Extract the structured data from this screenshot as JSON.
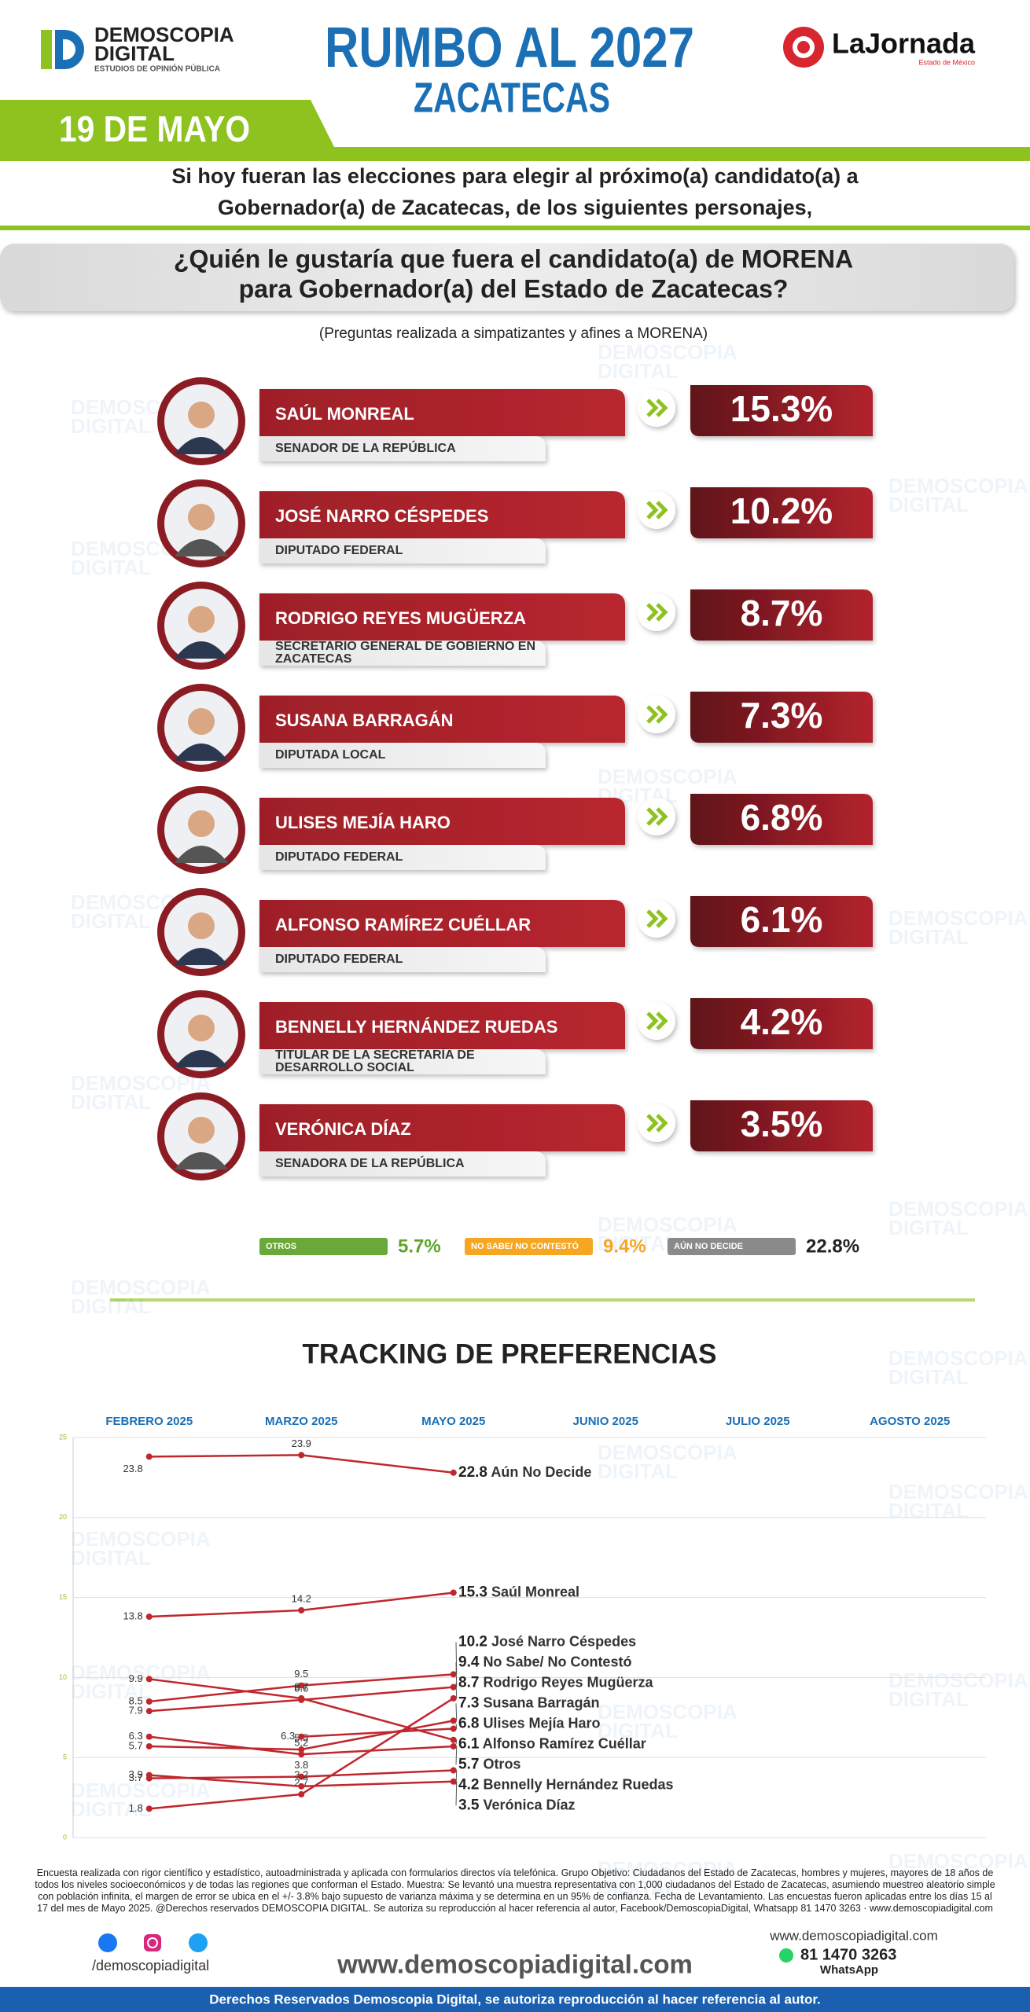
{
  "header": {
    "brand": [
      "DEMOSCOPIA",
      "DIGITAL"
    ],
    "brand_tagline": "ESTUDIOS DE OPINIÓN PÚBLICA",
    "title": "RUMBO AL 2027",
    "subtitle": "ZACATECAS",
    "partner": "LaJornada",
    "partner_tagline": "Estado de México",
    "date": "19 DE MAYO"
  },
  "watermark": [
    "DEMOSCOPIA",
    "DIGITAL"
  ],
  "intro": [
    "Si hoy fueran las elecciones para elegir al próximo(a) candidato(a) a",
    "Gobernador(a) de Zacatecas, de los siguientes personajes,"
  ],
  "question": [
    "¿Quién le gustaría que fuera el candidato(a) de MORENA",
    "para Gobernador(a) del Estado de Zacatecas?"
  ],
  "note": "(Preguntas realizada a simpatizantes y afines a MORENA)",
  "candidates": [
    {
      "name": "SAÚL MONREAL",
      "role": [
        "SENADOR DE LA REPÚBLICA"
      ],
      "pct": "15.3%"
    },
    {
      "name": "JOSÉ NARRO CÉSPEDES",
      "role": [
        "DIPUTADO FEDERAL"
      ],
      "pct": "10.2%"
    },
    {
      "name": "RODRIGO REYES MUGÜERZA",
      "role": [
        "SECRETARIO GENERAL DE GOBIERNO EN",
        "ZACATECAS"
      ],
      "pct": "8.7%"
    },
    {
      "name": "SUSANA BARRAGÁN",
      "role": [
        "DIPUTADA LOCAL"
      ],
      "pct": "7.3%"
    },
    {
      "name": "ULISES MEJÍA HARO",
      "role": [
        "DIPUTADO FEDERAL"
      ],
      "pct": "6.8%"
    },
    {
      "name": "ALFONSO RAMÍREZ CUÉLLAR",
      "role": [
        "DIPUTADO FEDERAL"
      ],
      "pct": "6.1%"
    },
    {
      "name": "BENNELLY HERNÁNDEZ RUEDAS",
      "role": [
        "TITULAR DE LA SECRETARÍA DE",
        "DESARROLLO SOCIAL"
      ],
      "pct": "4.2%"
    },
    {
      "name": "VERÓNICA DÍAZ",
      "role": [
        "SENADORA DE LA REPÚBLICA"
      ],
      "pct": "3.5%"
    }
  ],
  "others": [
    {
      "label": "OTROS",
      "pct": "5.7%",
      "color": "#6aa83a",
      "text_color": "#5ea52a"
    },
    {
      "label": "NO SABE/ NO CONTESTÓ",
      "pct": "9.4%",
      "color": "#f5a623",
      "text_color": "#f5a623"
    },
    {
      "label": "AÚN NO DECIDE",
      "pct": "22.8%",
      "color": "#8a8a8a",
      "text_color": "#222222"
    }
  ],
  "chart_data": {
    "type": "line",
    "title": "TRACKING DE PREFERENCIAS",
    "categories": [
      "FEBRERO 2025",
      "MARZO 2025",
      "MAYO 2025",
      "JUNIO 2025",
      "JULIO 2025",
      "AGOSTO 2025"
    ],
    "ylim": [
      0,
      25
    ],
    "yticks": [
      0,
      5,
      10,
      15,
      20,
      25
    ],
    "grid": true,
    "series": [
      {
        "name": "Aún No Decide",
        "color": "#c0272d",
        "values": [
          23.8,
          23.9,
          22.8,
          null,
          null,
          null
        ]
      },
      {
        "name": "Saúl Monreal",
        "color": "#c0272d",
        "values": [
          13.8,
          14.2,
          15.3,
          null,
          null,
          null
        ]
      },
      {
        "name": "José Narro Céspedes",
        "color": "#c0272d",
        "values": [
          8.5,
          9.5,
          10.2,
          null,
          null,
          null
        ]
      },
      {
        "name": "No Sabe/ No Contestó",
        "color": "#c0272d",
        "values": [
          7.9,
          8.6,
          9.4,
          null,
          null,
          null
        ]
      },
      {
        "name": "Rodrigo Reyes Mugüerza",
        "color": "#c0272d",
        "values": [
          1.8,
          2.7,
          8.7,
          null,
          null,
          null
        ]
      },
      {
        "name": "Susana Barragán",
        "color": "#c0272d",
        "values": [
          5.7,
          5.5,
          7.3,
          null,
          null,
          null
        ]
      },
      {
        "name": "Ulises Mejía Haro",
        "color": "#c0272d",
        "values": [
          null,
          6.3,
          6.8,
          null,
          null,
          null
        ]
      },
      {
        "name": "Alfonso Ramírez Cuéllar",
        "color": "#c0272d",
        "values": [
          9.9,
          8.7,
          6.1,
          null,
          null,
          null
        ]
      },
      {
        "name": "Otros",
        "color": "#c0272d",
        "values": [
          6.3,
          5.2,
          5.7,
          null,
          null,
          null
        ]
      },
      {
        "name": "Bennelly Hernández Ruedas",
        "color": "#c0272d",
        "values": [
          3.7,
          3.8,
          4.2,
          null,
          null,
          null
        ]
      },
      {
        "name": "Verónica Díaz",
        "color": "#c0272d",
        "values": [
          3.9,
          3.2,
          3.5,
          null,
          null,
          null
        ]
      }
    ]
  },
  "footer": {
    "methodology": "Encuesta realizada con rigor científico y estadístico, autoadministrada y aplicada con formularios directos vía telefónica. Grupo Objetivo: Ciudadanos del Estado de Zacatecas, hombres y mujeres, mayores de 18 años de todos los niveles socioeconómicos y de todas las regiones que conforman el Estado. Muestra: Se levantó una muestra representativa con 1,000 ciudadanos del Estado de Zacatecas, asumiendo muestreo aleatorio simple con población infinita, el margen de error se ubica en el +/- 3.8% bajo supuesto de varianza máxima y se determina en un 95% de confianza. Fecha de Levantamiento. Las encuestas fueron aplicadas entre los días 15 al 17 del mes de Mayo 2025. @Derechos reservados DEMOSCOPIA DIGITAL. Se autoriza su reproducción al hacer referencia al autor, Facebook/DemoscopiaDigital, Whatsapp 81 1470 3263 · www.demoscopiadigital.com",
    "social_handle": "/demoscopiadigital",
    "website_big": "www.demoscopiadigital.com",
    "website": "www.demoscopiadigital.com",
    "phone": "81 1470 3263",
    "whatsapp": "WhatsApp",
    "rights": "Derechos Reservados Demoscopia Digital, se autoriza reproducción al hacer referencia al autor."
  }
}
